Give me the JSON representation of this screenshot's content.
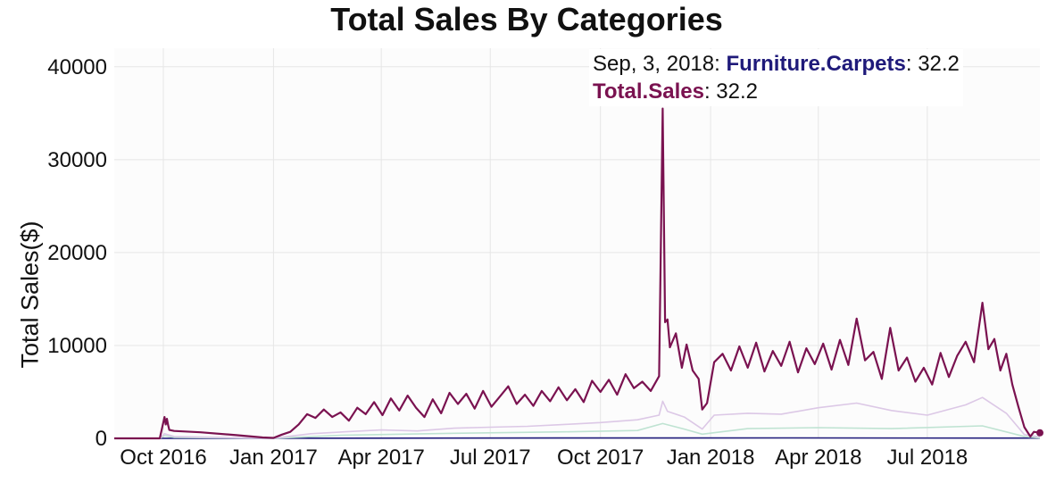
{
  "chart_data": {
    "type": "line",
    "title": "Total Sales By Categories",
    "xlabel": "",
    "ylabel": "Total Sales($)",
    "x_range": [
      "2016-08-21",
      "2018-10-03"
    ],
    "ylim": [
      0,
      42000
    ],
    "y_ticks": [
      0,
      10000,
      20000,
      30000,
      40000
    ],
    "y_tick_labels": [
      "0",
      "10000",
      "20000",
      "30000",
      "40000"
    ],
    "x_ticks": [
      {
        "date": "2016-10-01",
        "label": "Oct 2016"
      },
      {
        "date": "2017-01-01",
        "label": "Jan 2017"
      },
      {
        "date": "2017-04-01",
        "label": "Apr 2017"
      },
      {
        "date": "2017-07-01",
        "label": "Jul 2017"
      },
      {
        "date": "2017-10-01",
        "label": "Oct 2017"
      },
      {
        "date": "2018-01-01",
        "label": "Jan 2018"
      },
      {
        "date": "2018-04-01",
        "label": "Apr 2018"
      },
      {
        "date": "2018-07-01",
        "label": "Jul 2018"
      }
    ],
    "grid": true,
    "series": [
      {
        "name": "Total.Sales",
        "color": "#7a1250",
        "points": [
          [
            "2016-08-21",
            0
          ],
          [
            "2016-09-01",
            0
          ],
          [
            "2016-09-15",
            0
          ],
          [
            "2016-09-28",
            0
          ],
          [
            "2016-10-02",
            2300
          ],
          [
            "2016-10-03",
            1500
          ],
          [
            "2016-10-04",
            2100
          ],
          [
            "2016-10-05",
            1400
          ],
          [
            "2016-10-06",
            900
          ],
          [
            "2016-10-10",
            800
          ],
          [
            "2016-11-01",
            650
          ],
          [
            "2016-12-01",
            350
          ],
          [
            "2016-12-23",
            100
          ],
          [
            "2017-01-01",
            50
          ],
          [
            "2017-01-08",
            400
          ],
          [
            "2017-01-15",
            700
          ],
          [
            "2017-01-22",
            1500
          ],
          [
            "2017-01-29",
            2600
          ],
          [
            "2017-02-05",
            2200
          ],
          [
            "2017-02-12",
            3100
          ],
          [
            "2017-02-19",
            2300
          ],
          [
            "2017-02-26",
            2800
          ],
          [
            "2017-03-05",
            1900
          ],
          [
            "2017-03-12",
            3300
          ],
          [
            "2017-03-19",
            2600
          ],
          [
            "2017-03-26",
            3900
          ],
          [
            "2017-04-02",
            2500
          ],
          [
            "2017-04-09",
            4300
          ],
          [
            "2017-04-16",
            3000
          ],
          [
            "2017-04-23",
            4600
          ],
          [
            "2017-04-30",
            3300
          ],
          [
            "2017-05-07",
            2300
          ],
          [
            "2017-05-14",
            4200
          ],
          [
            "2017-05-21",
            2700
          ],
          [
            "2017-05-28",
            4900
          ],
          [
            "2017-06-04",
            3700
          ],
          [
            "2017-06-11",
            4800
          ],
          [
            "2017-06-18",
            3200
          ],
          [
            "2017-06-25",
            5100
          ],
          [
            "2017-07-02",
            3400
          ],
          [
            "2017-07-09",
            4500
          ],
          [
            "2017-07-16",
            5600
          ],
          [
            "2017-07-23",
            3700
          ],
          [
            "2017-07-30",
            4700
          ],
          [
            "2017-08-06",
            3500
          ],
          [
            "2017-08-13",
            5100
          ],
          [
            "2017-08-20",
            4000
          ],
          [
            "2017-08-27",
            5500
          ],
          [
            "2017-09-03",
            4100
          ],
          [
            "2017-09-10",
            5300
          ],
          [
            "2017-09-17",
            3900
          ],
          [
            "2017-09-24",
            6200
          ],
          [
            "2017-10-01",
            5000
          ],
          [
            "2017-10-08",
            6300
          ],
          [
            "2017-10-15",
            4700
          ],
          [
            "2017-10-22",
            6900
          ],
          [
            "2017-10-29",
            5400
          ],
          [
            "2017-11-05",
            6100
          ],
          [
            "2017-11-12",
            5100
          ],
          [
            "2017-11-19",
            6700
          ],
          [
            "2017-11-22",
            35500
          ],
          [
            "2017-11-24",
            12500
          ],
          [
            "2017-11-26",
            12800
          ],
          [
            "2017-11-28",
            9800
          ],
          [
            "2017-12-03",
            11300
          ],
          [
            "2017-12-08",
            7600
          ],
          [
            "2017-12-12",
            10100
          ],
          [
            "2017-12-17",
            7300
          ],
          [
            "2017-12-22",
            6400
          ],
          [
            "2017-12-25",
            3100
          ],
          [
            "2017-12-29",
            3800
          ],
          [
            "2018-01-04",
            8200
          ],
          [
            "2018-01-11",
            9100
          ],
          [
            "2018-01-18",
            7300
          ],
          [
            "2018-01-25",
            9900
          ],
          [
            "2018-02-01",
            7600
          ],
          [
            "2018-02-08",
            10300
          ],
          [
            "2018-02-15",
            7200
          ],
          [
            "2018-02-22",
            9400
          ],
          [
            "2018-03-01",
            7800
          ],
          [
            "2018-03-08",
            10400
          ],
          [
            "2018-03-15",
            7100
          ],
          [
            "2018-03-22",
            9700
          ],
          [
            "2018-03-29",
            8000
          ],
          [
            "2018-04-05",
            10200
          ],
          [
            "2018-04-12",
            7400
          ],
          [
            "2018-04-19",
            10600
          ],
          [
            "2018-04-26",
            7900
          ],
          [
            "2018-05-03",
            12900
          ],
          [
            "2018-05-10",
            8400
          ],
          [
            "2018-05-17",
            9300
          ],
          [
            "2018-05-24",
            6400
          ],
          [
            "2018-05-31",
            11900
          ],
          [
            "2018-06-07",
            7300
          ],
          [
            "2018-06-14",
            8700
          ],
          [
            "2018-06-21",
            6100
          ],
          [
            "2018-06-28",
            7600
          ],
          [
            "2018-07-05",
            5800
          ],
          [
            "2018-07-12",
            9200
          ],
          [
            "2018-07-19",
            6600
          ],
          [
            "2018-07-26",
            8900
          ],
          [
            "2018-08-02",
            10400
          ],
          [
            "2018-08-09",
            8200
          ],
          [
            "2018-08-16",
            14600
          ],
          [
            "2018-08-21",
            9600
          ],
          [
            "2018-08-26",
            10700
          ],
          [
            "2018-08-31",
            7300
          ],
          [
            "2018-09-05",
            9100
          ],
          [
            "2018-09-10",
            5800
          ],
          [
            "2018-09-15",
            3400
          ],
          [
            "2018-09-20",
            1200
          ],
          [
            "2018-09-25",
            200
          ],
          [
            "2018-09-28",
            700
          ],
          [
            "2018-10-03",
            600
          ]
        ]
      },
      {
        "name": "",
        "color": "#dcc8e6",
        "points": [
          [
            "2016-08-21",
            0
          ],
          [
            "2016-09-28",
            0
          ],
          [
            "2016-10-02",
            500
          ],
          [
            "2016-10-10",
            200
          ],
          [
            "2016-12-23",
            20
          ],
          [
            "2017-01-01",
            20
          ],
          [
            "2017-02-01",
            500
          ],
          [
            "2017-03-01",
            700
          ],
          [
            "2017-04-01",
            900
          ],
          [
            "2017-05-01",
            800
          ],
          [
            "2017-06-01",
            1100
          ],
          [
            "2017-07-01",
            1200
          ],
          [
            "2017-08-01",
            1300
          ],
          [
            "2017-09-01",
            1500
          ],
          [
            "2017-10-01",
            1700
          ],
          [
            "2017-11-01",
            2000
          ],
          [
            "2017-11-19",
            2500
          ],
          [
            "2017-11-22",
            4000
          ],
          [
            "2017-11-26",
            2900
          ],
          [
            "2017-12-10",
            2300
          ],
          [
            "2017-12-25",
            1000
          ],
          [
            "2018-01-04",
            2500
          ],
          [
            "2018-02-01",
            2700
          ],
          [
            "2018-03-01",
            2600
          ],
          [
            "2018-04-01",
            3300
          ],
          [
            "2018-05-03",
            3800
          ],
          [
            "2018-06-01",
            3000
          ],
          [
            "2018-07-01",
            2500
          ],
          [
            "2018-08-02",
            3600
          ],
          [
            "2018-08-16",
            4400
          ],
          [
            "2018-09-05",
            2700
          ],
          [
            "2018-09-20",
            400
          ],
          [
            "2018-10-03",
            150
          ]
        ]
      },
      {
        "name": "",
        "color": "#bfe3d2",
        "points": [
          [
            "2016-08-21",
            0
          ],
          [
            "2016-09-28",
            0
          ],
          [
            "2016-10-02",
            300
          ],
          [
            "2016-10-10",
            100
          ],
          [
            "2017-01-01",
            10
          ],
          [
            "2017-03-01",
            350
          ],
          [
            "2017-06-01",
            550
          ],
          [
            "2017-09-01",
            700
          ],
          [
            "2017-11-01",
            850
          ],
          [
            "2017-11-22",
            1600
          ],
          [
            "2017-12-10",
            1000
          ],
          [
            "2017-12-25",
            450
          ],
          [
            "2018-02-01",
            1050
          ],
          [
            "2018-04-01",
            1150
          ],
          [
            "2018-06-01",
            1050
          ],
          [
            "2018-08-16",
            1350
          ],
          [
            "2018-09-20",
            200
          ],
          [
            "2018-10-03",
            60
          ]
        ]
      },
      {
        "name": "Furniture.Carpets",
        "color": "#1f1a7a",
        "points": [
          [
            "2016-08-21",
            0
          ],
          [
            "2017-03-01",
            20
          ],
          [
            "2017-09-01",
            40
          ],
          [
            "2018-03-01",
            50
          ],
          [
            "2018-09-03",
            32.2
          ],
          [
            "2018-10-03",
            30
          ]
        ]
      }
    ],
    "tooltip": {
      "date_label": "Sep, 3, 2018",
      "category_name": "Furniture.Carpets",
      "category_value": "32.2",
      "total_name": "Total.Sales",
      "total_value": "32.2"
    }
  }
}
